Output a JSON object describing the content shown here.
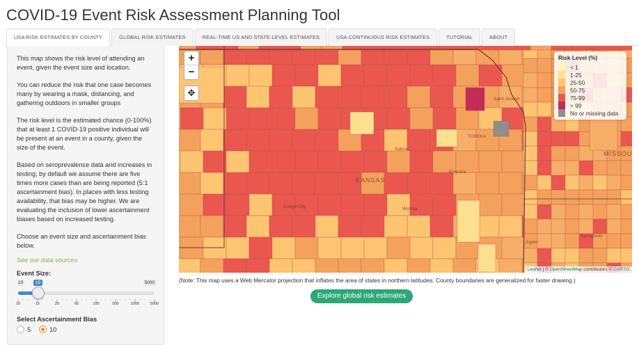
{
  "title": "COVID-19 Event Risk Assessment Planning Tool",
  "tabs": [
    {
      "label": "USA RISK ESTIMATES BY COUNTY",
      "active": true
    },
    {
      "label": "GLOBAL RISK ESTIMATES"
    },
    {
      "label": "REAL-TIME US AND STATE-LEVEL ESTIMATES"
    },
    {
      "label": "USA CONTINUOUS RISK ESTIMATES"
    },
    {
      "label": "TUTORIAL"
    },
    {
      "label": "ABOUT"
    }
  ],
  "sidebar": {
    "paragraphs": [
      "This map shows the risk level of attending an event, given the event size and location.",
      "You can reduce the risk that one case becomes many by wearing a mask, distancing, and gathering outdoors in smaller groups",
      "The risk level is the estimated chance (0-100%) that at least 1 COVID-19 positive individual will be present at an event in a county, given the size of the event.",
      "Based on seroprevalence data and increases in testing, by default we assume there are five times more cases than are being reported (5:1 ascertainment bias). In places with less testing availability, that bias may be higher. We are evaluating the inclusion of lower ascertainment biases based on increased testing.",
      "Choose an event size and ascertainment bias below."
    ],
    "sources_link": "See our data sources",
    "event_size": {
      "label": "Event Size:",
      "min": "10",
      "max": "5000",
      "value": "15",
      "ticks": [
        "10",
        "15",
        "20",
        "50",
        "100",
        "500",
        "1000",
        "5000"
      ]
    },
    "bias": {
      "label": "Select Ascertainment Bias",
      "options": [
        "5",
        "10"
      ],
      "selected": "10"
    }
  },
  "map": {
    "zoom_in": "+",
    "zoom_out": "−",
    "legend": {
      "title": "Risk Level (%)",
      "items": [
        {
          "label": "< 1",
          "color": "#fff7b6"
        },
        {
          "label": "1-25",
          "color": "#fde08f"
        },
        {
          "label": "25-50",
          "color": "#fdc471"
        },
        {
          "label": "50-75",
          "color": "#f3a15c"
        },
        {
          "label": "75-99",
          "color": "#e9574e"
        },
        {
          "label": "> 99",
          "color": "#c32d55"
        },
        {
          "label": "No or missing data",
          "color": "#8e8e8e"
        }
      ]
    },
    "places": {
      "kansas": "KANSAS",
      "missouri": "MISSOU",
      "topeka": "TOPEKA",
      "salina": "Salina",
      "emporia": "Emporia",
      "wichita": "Wichita",
      "dodge_city": "Dodge City",
      "saint_joseph": "Saint Joseph",
      "joplin": "Joplin",
      "springfield": "Springfield"
    },
    "attribution": {
      "leaflet": "Leaflet",
      "sep": " | © ",
      "osm": "OpenStreetMap",
      "contrib": " contributors © ",
      "carto": "CARTO"
    }
  },
  "note": "(Note: This map uses a Web Mercator projection that inflates the area of states in northern latitudes. County boundaries are generalized for faster drawing.)",
  "explore_button": "Explore global risk estimates"
}
